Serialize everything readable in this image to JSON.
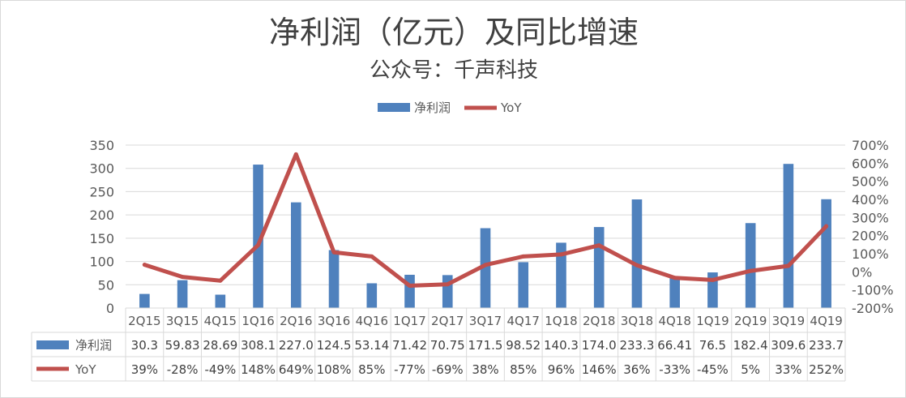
{
  "chart_data": {
    "type": "bar+line",
    "title": "净利润（亿元）及同比增速",
    "subtitle": "公众号：千声科技",
    "categories": [
      "2Q15",
      "3Q15",
      "4Q15",
      "1Q16",
      "2Q16",
      "3Q16",
      "4Q16",
      "1Q17",
      "2Q17",
      "3Q17",
      "4Q17",
      "1Q18",
      "2Q18",
      "3Q18",
      "4Q18",
      "1Q19",
      "2Q19",
      "3Q19",
      "4Q19"
    ],
    "series": [
      {
        "name": "净利润",
        "type": "bar",
        "axis": "left",
        "values": [
          30.3,
          59.83,
          28.69,
          308.1,
          227.0,
          124.5,
          53.14,
          71.42,
          70.75,
          171.5,
          98.52,
          140.3,
          174.0,
          233.3,
          66.41,
          76.5,
          182.4,
          309.6,
          233.7
        ],
        "labels": [
          "30.3",
          "59.83",
          "28.69",
          "308.1",
          "227.0",
          "124.5",
          "53.14",
          "71.42",
          "70.75",
          "171.5",
          "98.52",
          "140.3",
          "174.0",
          "233.3",
          "66.41",
          "76.5",
          "182.4",
          "309.6",
          "233.7"
        ],
        "color": "#4f81bd"
      },
      {
        "name": "YoY",
        "type": "line",
        "axis": "right",
        "values": [
          39,
          -28,
          -49,
          148,
          649,
          108,
          85,
          -77,
          -69,
          38,
          85,
          96,
          146,
          36,
          -33,
          -45,
          5,
          33,
          252
        ],
        "labels": [
          "39%",
          "-28%",
          "-49%",
          "148%",
          "649%",
          "108%",
          "85%",
          "-77%",
          "-69%",
          "38%",
          "85%",
          "96%",
          "146%",
          "36%",
          "-33%",
          "-45%",
          "5%",
          "33%",
          "252%"
        ],
        "color": "#c0504d"
      }
    ],
    "y_left": {
      "min": 0,
      "max": 350,
      "step": 50,
      "ticks": [
        "0",
        "50",
        "100",
        "150",
        "200",
        "250",
        "300",
        "350"
      ]
    },
    "y_right": {
      "min": -200,
      "max": 700,
      "step": 100,
      "ticks": [
        "-200%",
        "-100%",
        "0%",
        "100%",
        "200%",
        "300%",
        "400%",
        "500%",
        "600%",
        "700%"
      ]
    },
    "legend": {
      "position": "top",
      "entries": [
        "净利润",
        "YoY"
      ]
    },
    "grid": true,
    "data_table": true
  }
}
